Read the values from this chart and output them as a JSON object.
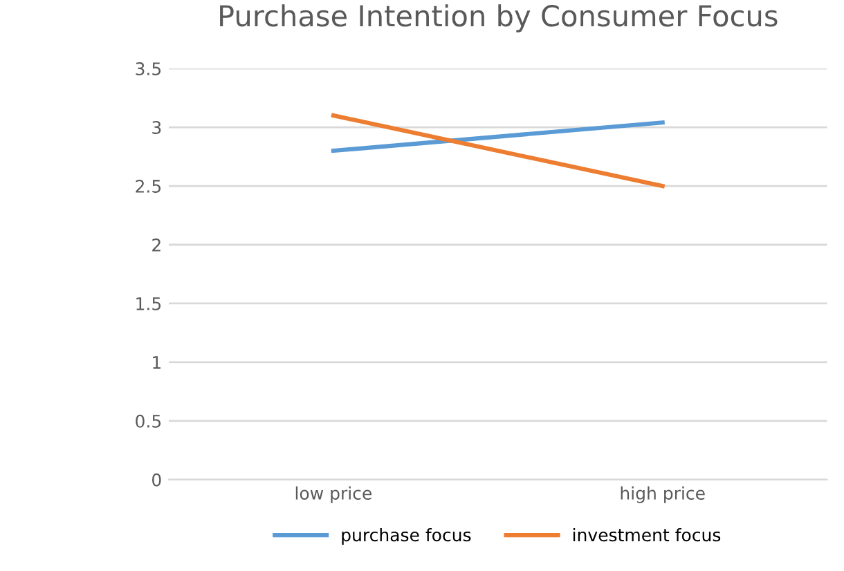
{
  "chart_data": {
    "type": "line",
    "title": "Purchase Intention by Consumer Focus",
    "categories": [
      "low price",
      "high price"
    ],
    "series": [
      {
        "name": "purchase focus",
        "color": "#5b9bd5",
        "values": [
          2.8,
          3.04
        ]
      },
      {
        "name": "investment focus",
        "color": "#ed7d31",
        "values": [
          3.1,
          2.5
        ]
      }
    ],
    "ylim": [
      0,
      3.5
    ],
    "yticks": [
      0,
      0.5,
      1,
      1.5,
      2,
      2.5,
      3,
      3.5
    ],
    "grid": "y",
    "legend": "bottom",
    "marker": "none",
    "line_style": "solid"
  }
}
